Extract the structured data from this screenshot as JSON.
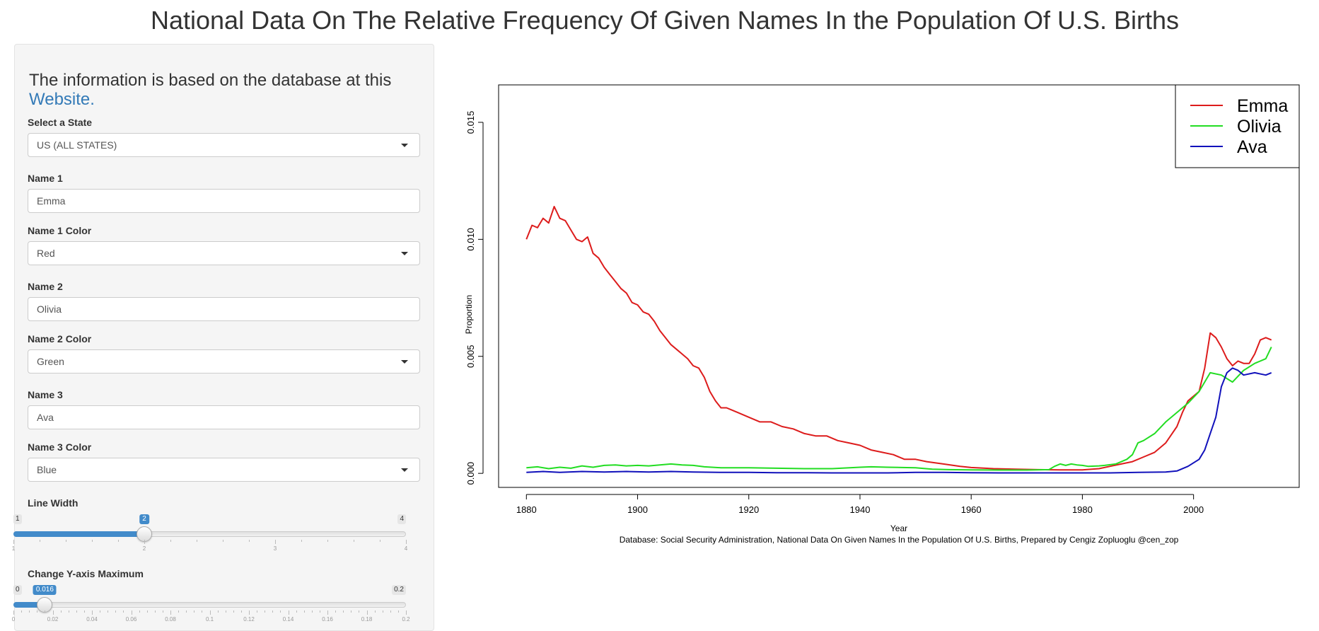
{
  "page": {
    "title": "National Data On The Relative Frequency Of Given Names In the Population Of U.S. Births"
  },
  "sidebar": {
    "intro_text": "The information is based on the database at this",
    "intro_link": "Website.",
    "state": {
      "label": "Select a State",
      "value": "US (ALL STATES)"
    },
    "name1": {
      "label": "Name 1",
      "value": "Emma"
    },
    "name1_color": {
      "label": "Name 1 Color",
      "value": "Red"
    },
    "name2": {
      "label": "Name 2",
      "value": "Olivia"
    },
    "name2_color": {
      "label": "Name 2 Color",
      "value": "Green"
    },
    "name3": {
      "label": "Name 3",
      "value": "Ava"
    },
    "name3_color": {
      "label": "Name 3 Color",
      "value": "Blue"
    },
    "line_width": {
      "label": "Line Width",
      "min": 1,
      "max": 4,
      "value": 2,
      "min_label": "1",
      "max_label": "4",
      "value_label": "2",
      "ticks": [
        "1",
        "2",
        "3",
        "4"
      ]
    },
    "ymax": {
      "label": "Change Y-axis Maximum",
      "min": 0,
      "max": 0.2,
      "value": 0.016,
      "min_label": "0",
      "max_label": "0.2",
      "value_label": "0.016",
      "ticks": [
        "0",
        "0.02",
        "0.04",
        "0.06",
        "0.08",
        "0.1",
        "0.12",
        "0.14",
        "0.16",
        "0.18",
        "0.2"
      ]
    }
  },
  "chart_data": {
    "type": "line",
    "xlabel": "Year",
    "ylabel": "Proportion",
    "caption": "Database: Social Security Administration, National Data On Given Names In the Population Of U.S. Births, Prepared by Cengiz Zopluoglu @cen_zop",
    "xlim": [
      1875,
      2019
    ],
    "ylim": [
      -0.0006,
      0.0166
    ],
    "xticks": [
      1880,
      1900,
      1920,
      1940,
      1960,
      1980,
      2000
    ],
    "xtick_labels": [
      "1880",
      "1900",
      "1920",
      "1940",
      "1960",
      "1980",
      "2000"
    ],
    "yticks": [
      0,
      0.005,
      0.01,
      0.015
    ],
    "ytick_labels": [
      "0.000",
      "0.005",
      "0.010",
      "0.015"
    ],
    "legend_position": "top-right",
    "series": [
      {
        "name": "Emma",
        "color": "#dd1c1c",
        "points": [
          [
            1880,
            0.01
          ],
          [
            1881,
            0.0106
          ],
          [
            1882,
            0.0105
          ],
          [
            1883,
            0.0109
          ],
          [
            1884,
            0.0107
          ],
          [
            1885,
            0.0114
          ],
          [
            1886,
            0.0109
          ],
          [
            1887,
            0.0108
          ],
          [
            1888,
            0.0104
          ],
          [
            1889,
            0.01
          ],
          [
            1890,
            0.0099
          ],
          [
            1891,
            0.0101
          ],
          [
            1892,
            0.0094
          ],
          [
            1893,
            0.0092
          ],
          [
            1894,
            0.0088
          ],
          [
            1895,
            0.0085
          ],
          [
            1896,
            0.0082
          ],
          [
            1897,
            0.0079
          ],
          [
            1898,
            0.0077
          ],
          [
            1899,
            0.0073
          ],
          [
            1900,
            0.0072
          ],
          [
            1901,
            0.0069
          ],
          [
            1902,
            0.0068
          ],
          [
            1903,
            0.0065
          ],
          [
            1904,
            0.0061
          ],
          [
            1905,
            0.0058
          ],
          [
            1906,
            0.0055
          ],
          [
            1907,
            0.0053
          ],
          [
            1908,
            0.0051
          ],
          [
            1909,
            0.0049
          ],
          [
            1910,
            0.0046
          ],
          [
            1911,
            0.0045
          ],
          [
            1912,
            0.0041
          ],
          [
            1913,
            0.0035
          ],
          [
            1914,
            0.0031
          ],
          [
            1915,
            0.0028
          ],
          [
            1916,
            0.0028
          ],
          [
            1917,
            0.0027
          ],
          [
            1918,
            0.0026
          ],
          [
            1919,
            0.0025
          ],
          [
            1920,
            0.0024
          ],
          [
            1922,
            0.0022
          ],
          [
            1924,
            0.0022
          ],
          [
            1926,
            0.002
          ],
          [
            1928,
            0.0019
          ],
          [
            1930,
            0.0017
          ],
          [
            1932,
            0.0016
          ],
          [
            1934,
            0.0016
          ],
          [
            1936,
            0.0014
          ],
          [
            1938,
            0.0013
          ],
          [
            1940,
            0.0012
          ],
          [
            1942,
            0.001
          ],
          [
            1944,
            0.0009
          ],
          [
            1946,
            0.0008
          ],
          [
            1948,
            0.0006
          ],
          [
            1950,
            0.0006
          ],
          [
            1952,
            0.0005
          ],
          [
            1955,
            0.0004
          ],
          [
            1958,
            0.0003
          ],
          [
            1960,
            0.00025
          ],
          [
            1964,
            0.0002
          ],
          [
            1968,
            0.00018
          ],
          [
            1972,
            0.00016
          ],
          [
            1976,
            0.00015
          ],
          [
            1980,
            0.00015
          ],
          [
            1983,
            0.0002
          ],
          [
            1985,
            0.0003
          ],
          [
            1987,
            0.0004
          ],
          [
            1989,
            0.0005
          ],
          [
            1991,
            0.0007
          ],
          [
            1993,
            0.0009
          ],
          [
            1995,
            0.0013
          ],
          [
            1997,
            0.002
          ],
          [
            1998,
            0.0026
          ],
          [
            1999,
            0.0031
          ],
          [
            2000,
            0.0033
          ],
          [
            2001,
            0.0035
          ],
          [
            2002,
            0.0045
          ],
          [
            2003,
            0.006
          ],
          [
            2004,
            0.0058
          ],
          [
            2005,
            0.0054
          ],
          [
            2006,
            0.0049
          ],
          [
            2007,
            0.0046
          ],
          [
            2008,
            0.0048
          ],
          [
            2009,
            0.0047
          ],
          [
            2010,
            0.0047
          ],
          [
            2011,
            0.0051
          ],
          [
            2012,
            0.0057
          ],
          [
            2013,
            0.0058
          ],
          [
            2014,
            0.0057
          ]
        ]
      },
      {
        "name": "Olivia",
        "color": "#22dd22",
        "points": [
          [
            1880,
            0.00024
          ],
          [
            1882,
            0.00028
          ],
          [
            1884,
            0.0002
          ],
          [
            1886,
            0.00026
          ],
          [
            1888,
            0.00022
          ],
          [
            1890,
            0.00032
          ],
          [
            1892,
            0.00026
          ],
          [
            1894,
            0.00034
          ],
          [
            1896,
            0.00036
          ],
          [
            1898,
            0.00032
          ],
          [
            1900,
            0.00034
          ],
          [
            1902,
            0.00032
          ],
          [
            1904,
            0.00036
          ],
          [
            1906,
            0.0004
          ],
          [
            1908,
            0.00036
          ],
          [
            1910,
            0.00034
          ],
          [
            1912,
            0.00028
          ],
          [
            1915,
            0.00024
          ],
          [
            1920,
            0.00024
          ],
          [
            1925,
            0.00022
          ],
          [
            1930,
            0.0002
          ],
          [
            1935,
            0.0002
          ],
          [
            1940,
            0.00026
          ],
          [
            1942,
            0.00028
          ],
          [
            1945,
            0.00026
          ],
          [
            1950,
            0.00024
          ],
          [
            1953,
            0.00018
          ],
          [
            1956,
            0.00016
          ],
          [
            1960,
            0.00015
          ],
          [
            1965,
            0.00014
          ],
          [
            1970,
            0.00014
          ],
          [
            1974,
            0.00016
          ],
          [
            1975,
            0.0003
          ],
          [
            1976,
            0.0004
          ],
          [
            1977,
            0.00034
          ],
          [
            1978,
            0.0004
          ],
          [
            1979,
            0.00036
          ],
          [
            1980,
            0.00034
          ],
          [
            1981,
            0.0003
          ],
          [
            1983,
            0.00032
          ],
          [
            1984,
            0.00034
          ],
          [
            1986,
            0.0004
          ],
          [
            1988,
            0.0006
          ],
          [
            1989,
            0.0008
          ],
          [
            1990,
            0.0013
          ],
          [
            1991,
            0.0014
          ],
          [
            1993,
            0.0017
          ],
          [
            1995,
            0.0022
          ],
          [
            1997,
            0.0026
          ],
          [
            1999,
            0.003
          ],
          [
            2001,
            0.0035
          ],
          [
            2003,
            0.0043
          ],
          [
            2005,
            0.0042
          ],
          [
            2007,
            0.0039
          ],
          [
            2009,
            0.0044
          ],
          [
            2011,
            0.0047
          ],
          [
            2013,
            0.0049
          ],
          [
            2014,
            0.0054
          ]
        ]
      },
      {
        "name": "Ava",
        "color": "#1111bb",
        "points": [
          [
            1880,
            4e-05
          ],
          [
            1883,
            8e-05
          ],
          [
            1886,
            4e-05
          ],
          [
            1890,
            8e-05
          ],
          [
            1894,
            6e-05
          ],
          [
            1898,
            8e-05
          ],
          [
            1902,
            6e-05
          ],
          [
            1906,
            8e-05
          ],
          [
            1910,
            6e-05
          ],
          [
            1915,
            4e-05
          ],
          [
            1920,
            4e-05
          ],
          [
            1925,
            3e-05
          ],
          [
            1930,
            3e-05
          ],
          [
            1935,
            2e-05
          ],
          [
            1940,
            2e-05
          ],
          [
            1945,
            2e-05
          ],
          [
            1950,
            4e-05
          ],
          [
            1955,
            4e-05
          ],
          [
            1960,
            3e-05
          ],
          [
            1965,
            2e-05
          ],
          [
            1970,
            2e-05
          ],
          [
            1975,
            2e-05
          ],
          [
            1980,
            2e-05
          ],
          [
            1985,
            2e-05
          ],
          [
            1990,
            4e-05
          ],
          [
            1995,
            6e-05
          ],
          [
            1997,
            0.0001
          ],
          [
            1999,
            0.0003
          ],
          [
            2001,
            0.0006
          ],
          [
            2002,
            0.001
          ],
          [
            2003,
            0.0017
          ],
          [
            2004,
            0.0024
          ],
          [
            2005,
            0.0037
          ],
          [
            2006,
            0.0043
          ],
          [
            2007,
            0.0045
          ],
          [
            2008,
            0.0044
          ],
          [
            2009,
            0.0042
          ],
          [
            2011,
            0.0043
          ],
          [
            2013,
            0.0042
          ],
          [
            2014,
            0.0043
          ]
        ]
      }
    ]
  }
}
